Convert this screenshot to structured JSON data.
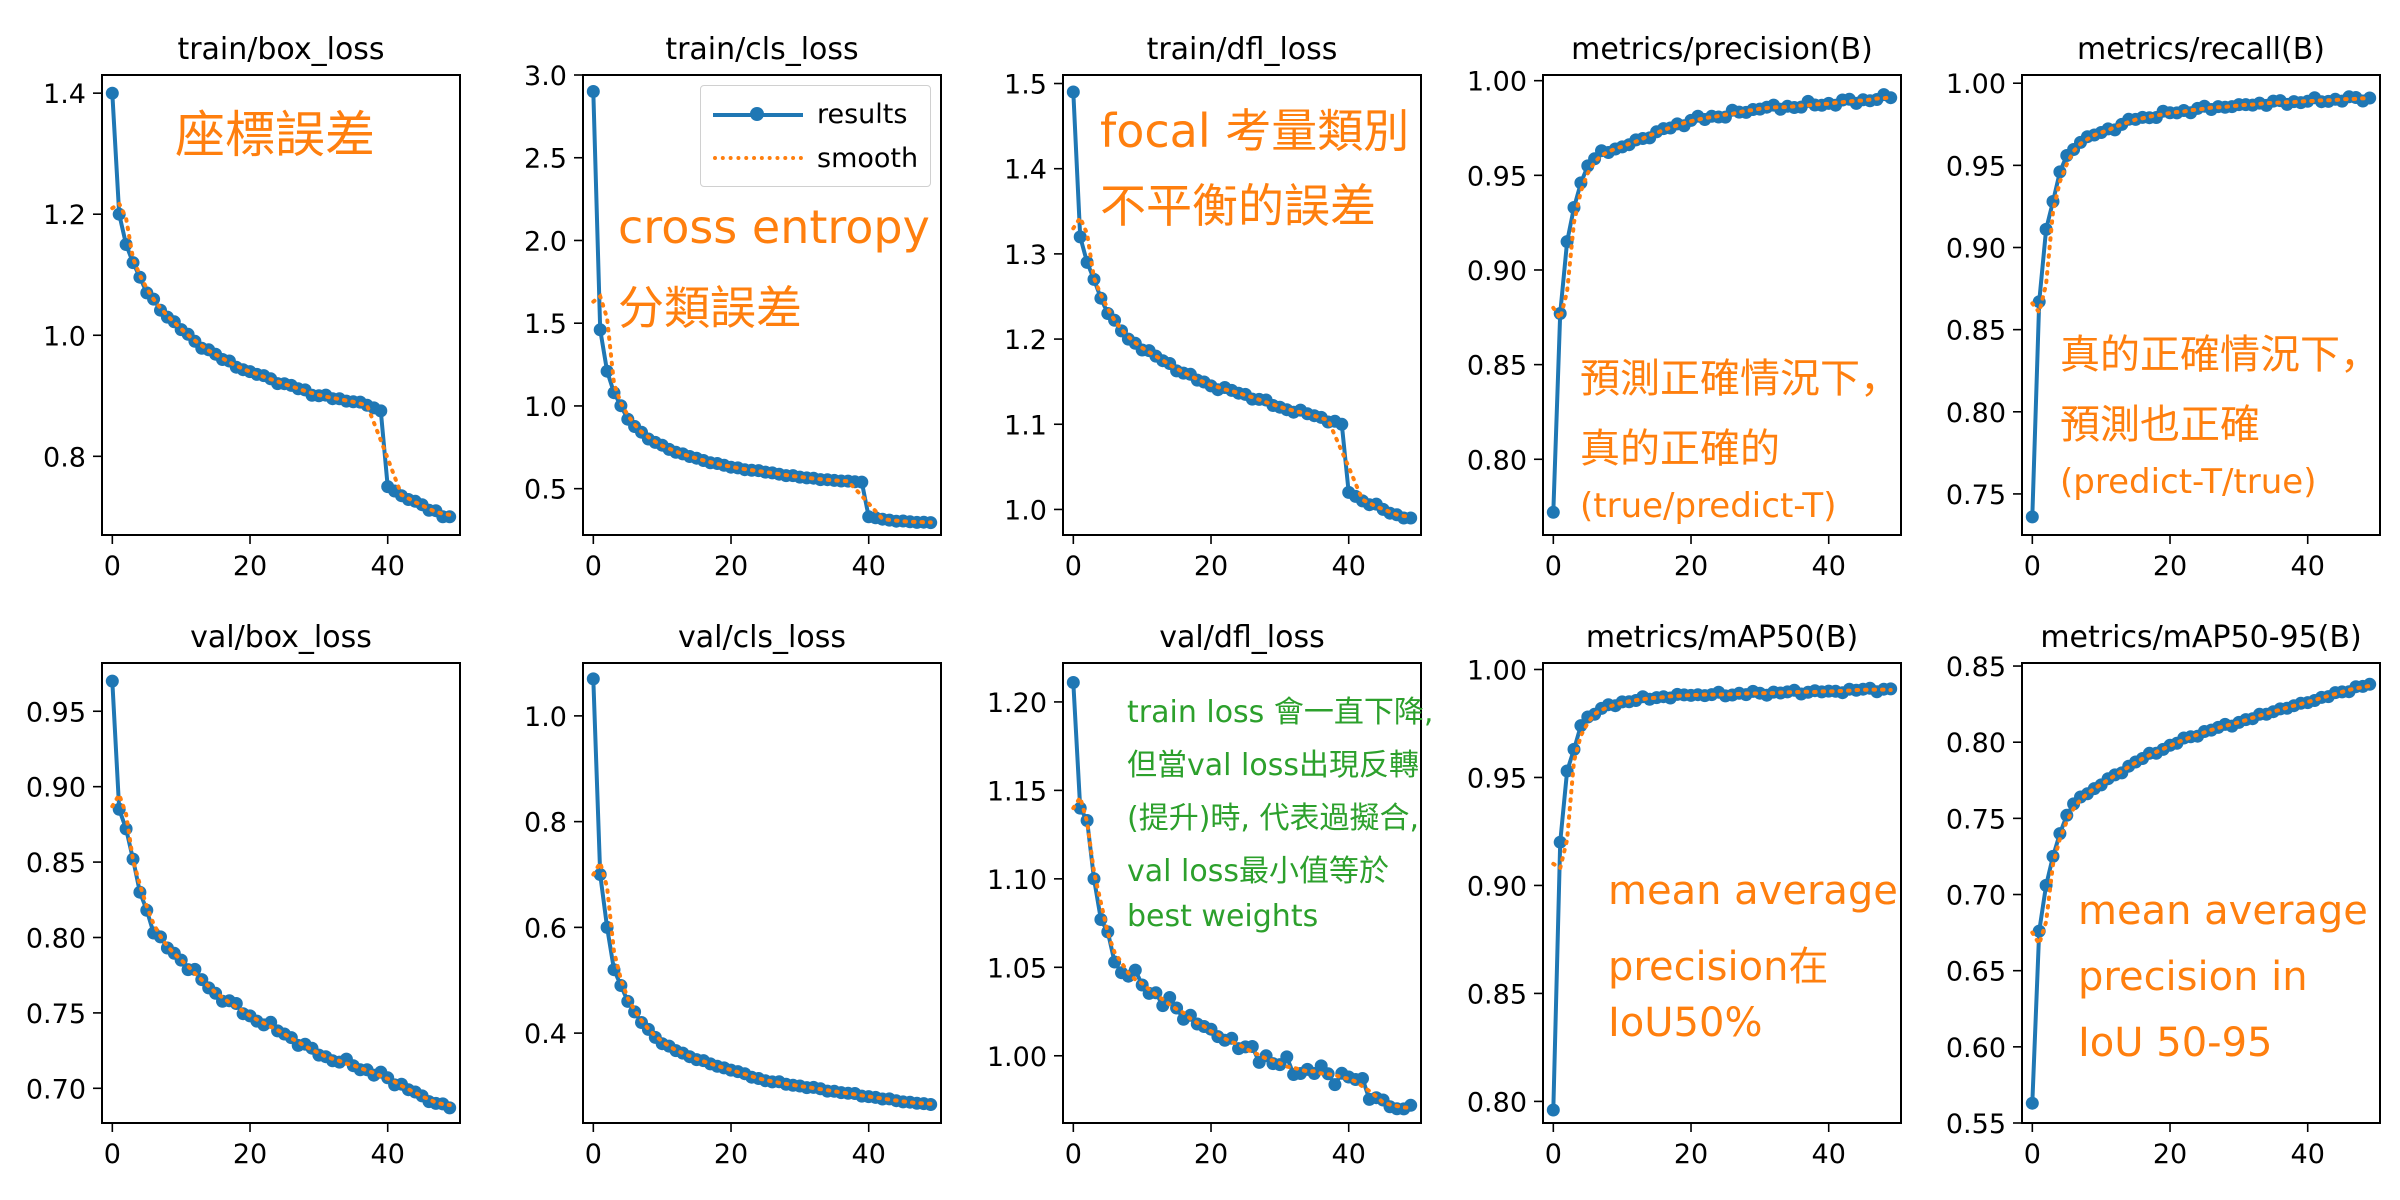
{
  "colors": {
    "results": "#1f77b4",
    "smooth": "#ff7f0e",
    "note_orange": "#ff7f0e",
    "note_green": "#2ca02c"
  },
  "legend": {
    "results_label": "results",
    "smooth_label": "smooth"
  },
  "chart_data": [
    {
      "type": "line",
      "title": "train/box_loss",
      "ylim": [
        0.67,
        1.43
      ],
      "yticks": [
        0.8,
        1.0,
        1.2,
        1.4
      ],
      "ytick_labels": [
        "0.8",
        "1.0",
        "1.2",
        "1.4"
      ],
      "anchors": [
        [
          0,
          1.4
        ],
        [
          1,
          1.2
        ],
        [
          2,
          1.15
        ],
        [
          3,
          1.12
        ],
        [
          5,
          1.07
        ],
        [
          8,
          1.03
        ],
        [
          12,
          0.99
        ],
        [
          16,
          0.96
        ],
        [
          20,
          0.94
        ],
        [
          25,
          0.92
        ],
        [
          30,
          0.9
        ],
        [
          35,
          0.89
        ],
        [
          38,
          0.88
        ],
        [
          39,
          0.875
        ],
        [
          40,
          0.75
        ],
        [
          42,
          0.735
        ],
        [
          45,
          0.72
        ],
        [
          48,
          0.7
        ],
        [
          49,
          0.7
        ]
      ],
      "noise": 0.004,
      "smooth_start": 1.21,
      "notes": [
        {
          "text": "座標誤差",
          "color": "orange",
          "size": 50
        }
      ]
    },
    {
      "type": "line",
      "title": "train/cls_loss",
      "ylim": [
        0.22,
        3.0
      ],
      "yticks": [
        0.5,
        1.0,
        1.5,
        2.0,
        2.5,
        3.0
      ],
      "ytick_labels": [
        "0.5",
        "1.0",
        "1.5",
        "2.0",
        "2.5",
        "3.0"
      ],
      "anchors": [
        [
          0,
          2.9
        ],
        [
          1,
          1.46
        ],
        [
          2,
          1.21
        ],
        [
          3,
          1.08
        ],
        [
          5,
          0.92
        ],
        [
          8,
          0.8
        ],
        [
          12,
          0.72
        ],
        [
          16,
          0.67
        ],
        [
          20,
          0.63
        ],
        [
          25,
          0.6
        ],
        [
          30,
          0.57
        ],
        [
          35,
          0.55
        ],
        [
          39,
          0.54
        ],
        [
          40,
          0.33
        ],
        [
          43,
          0.31
        ],
        [
          46,
          0.3
        ],
        [
          49,
          0.295
        ]
      ],
      "noise": 0.004,
      "smooth_start": 1.63,
      "legend": true,
      "notes": [
        {
          "text": "cross entropy",
          "color": "orange",
          "size": 46
        },
        {
          "text": "分類誤差",
          "color": "orange",
          "size": 46
        }
      ]
    },
    {
      "type": "line",
      "title": "train/dfl_loss",
      "ylim": [
        0.97,
        1.51
      ],
      "yticks": [
        1.0,
        1.1,
        1.2,
        1.3,
        1.4,
        1.5
      ],
      "ytick_labels": [
        "1.0",
        "1.1",
        "1.2",
        "1.3",
        "1.4",
        "1.5"
      ],
      "anchors": [
        [
          0,
          1.49
        ],
        [
          1,
          1.32
        ],
        [
          2,
          1.29
        ],
        [
          3,
          1.27
        ],
        [
          5,
          1.23
        ],
        [
          8,
          1.2
        ],
        [
          12,
          1.18
        ],
        [
          16,
          1.16
        ],
        [
          20,
          1.145
        ],
        [
          25,
          1.135
        ],
        [
          30,
          1.12
        ],
        [
          35,
          1.11
        ],
        [
          39,
          1.1
        ],
        [
          40,
          1.02
        ],
        [
          42,
          1.01
        ],
        [
          45,
          1.0
        ],
        [
          48,
          0.99
        ],
        [
          49,
          0.99
        ]
      ],
      "noise": 0.003,
      "smooth_start": 1.33,
      "notes": [
        {
          "text": "focal 考量類別",
          "color": "orange",
          "size": 46
        },
        {
          "text": "不平衡的誤差",
          "color": "orange",
          "size": 46
        }
      ]
    },
    {
      "type": "line",
      "title": "metrics/precision(B)",
      "ylim": [
        0.76,
        1.003
      ],
      "yticks": [
        0.8,
        0.85,
        0.9,
        0.95,
        1.0
      ],
      "ytick_labels": [
        "0.80",
        "0.85",
        "0.90",
        "0.95",
        "1.00"
      ],
      "anchors": [
        [
          0,
          0.772
        ],
        [
          1,
          0.877
        ],
        [
          2,
          0.915
        ],
        [
          3,
          0.933
        ],
        [
          4,
          0.946
        ],
        [
          5,
          0.955
        ],
        [
          7,
          0.963
        ],
        [
          10,
          0.965
        ],
        [
          15,
          0.973
        ],
        [
          20,
          0.979
        ],
        [
          30,
          0.985
        ],
        [
          40,
          0.988
        ],
        [
          49,
          0.991
        ]
      ],
      "noise": 0.002,
      "smooth_start": 0.88,
      "notes": [
        {
          "text": "預測正確情況下，",
          "color": "orange",
          "size": 40
        },
        {
          "text": "真的正確的",
          "color": "orange",
          "size": 40
        },
        {
          "text": "(true/predict-T)",
          "color": "orange",
          "size": 34
        }
      ]
    },
    {
      "type": "line",
      "title": "metrics/recall(B)",
      "ylim": [
        0.725,
        1.005
      ],
      "yticks": [
        0.75,
        0.8,
        0.85,
        0.9,
        0.95,
        1.0
      ],
      "ytick_labels": [
        "0.75",
        "0.80",
        "0.85",
        "0.90",
        "0.95",
        "1.00"
      ],
      "anchors": [
        [
          0,
          0.736
        ],
        [
          1,
          0.867
        ],
        [
          2,
          0.911
        ],
        [
          3,
          0.928
        ],
        [
          4,
          0.946
        ],
        [
          5,
          0.956
        ],
        [
          7,
          0.964
        ],
        [
          10,
          0.97
        ],
        [
          15,
          0.978
        ],
        [
          20,
          0.982
        ],
        [
          30,
          0.987
        ],
        [
          40,
          0.989
        ],
        [
          49,
          0.991
        ]
      ],
      "noise": 0.002,
      "smooth_start": 0.866,
      "notes": [
        {
          "text": "真的正確情況下，",
          "color": "orange",
          "size": 40
        },
        {
          "text": "預測也正確",
          "color": "orange",
          "size": 40
        },
        {
          "text": "(predict-T/true)",
          "color": "orange",
          "size": 34
        }
      ]
    },
    {
      "type": "line",
      "title": "val/box_loss",
      "ylim": [
        0.677,
        0.982
      ],
      "yticks": [
        0.7,
        0.75,
        0.8,
        0.85,
        0.9,
        0.95
      ],
      "ytick_labels": [
        "0.70",
        "0.75",
        "0.80",
        "0.85",
        "0.90",
        "0.95"
      ],
      "anchors": [
        [
          0,
          0.97
        ],
        [
          1,
          0.885
        ],
        [
          2,
          0.872
        ],
        [
          3,
          0.852
        ],
        [
          4,
          0.83
        ],
        [
          5,
          0.818
        ],
        [
          6,
          0.803
        ],
        [
          8,
          0.793
        ],
        [
          10,
          0.785
        ],
        [
          15,
          0.763
        ],
        [
          20,
          0.748
        ],
        [
          25,
          0.736
        ],
        [
          30,
          0.722
        ],
        [
          35,
          0.715
        ],
        [
          40,
          0.707
        ],
        [
          45,
          0.695
        ],
        [
          49,
          0.687
        ]
      ],
      "noise": 0.003,
      "smooth_start": 0.887,
      "notes": []
    },
    {
      "type": "line",
      "title": "val/cls_loss",
      "ylim": [
        0.23,
        1.1
      ],
      "yticks": [
        0.4,
        0.6,
        0.8,
        1.0
      ],
      "ytick_labels": [
        "0.4",
        "0.6",
        "0.8",
        "1.0"
      ],
      "anchors": [
        [
          0,
          1.07
        ],
        [
          1,
          0.7
        ],
        [
          2,
          0.6
        ],
        [
          3,
          0.52
        ],
        [
          4,
          0.49
        ],
        [
          5,
          0.46
        ],
        [
          7,
          0.42
        ],
        [
          10,
          0.38
        ],
        [
          15,
          0.35
        ],
        [
          20,
          0.33
        ],
        [
          25,
          0.31
        ],
        [
          30,
          0.3
        ],
        [
          35,
          0.29
        ],
        [
          40,
          0.28
        ],
        [
          45,
          0.27
        ],
        [
          49,
          0.265
        ]
      ],
      "noise": 0.002,
      "smooth_start": 0.7,
      "notes": []
    },
    {
      "type": "line",
      "title": "val/dfl_loss",
      "ylim": [
        0.962,
        1.222
      ],
      "yticks": [
        1.0,
        1.05,
        1.1,
        1.15,
        1.2
      ],
      "ytick_labels": [
        "1.00",
        "1.05",
        "1.10",
        "1.15",
        "1.20"
      ],
      "anchors": [
        [
          0,
          1.211
        ],
        [
          1,
          1.14
        ],
        [
          2,
          1.133
        ],
        [
          3,
          1.1
        ],
        [
          4,
          1.077
        ],
        [
          5,
          1.07
        ],
        [
          6,
          1.053
        ],
        [
          8,
          1.045
        ],
        [
          10,
          1.04
        ],
        [
          15,
          1.027
        ],
        [
          20,
          1.015
        ],
        [
          25,
          1.005
        ],
        [
          30,
          0.995
        ],
        [
          35,
          0.99
        ],
        [
          40,
          0.988
        ],
        [
          45,
          0.975
        ],
        [
          47,
          0.97
        ],
        [
          49,
          0.972
        ]
      ],
      "noise": 0.006,
      "smooth_start": 1.14,
      "notes": [
        {
          "text": "train loss 會一直下降,",
          "color": "green",
          "size": 30
        },
        {
          "text": "但當val loss出現反轉",
          "color": "green",
          "size": 30
        },
        {
          "text": "(提升)時, 代表過擬合,",
          "color": "green",
          "size": 30
        },
        {
          "text": "val loss最小值等於",
          "color": "green",
          "size": 30
        },
        {
          "text": "best weights",
          "color": "green",
          "size": 30
        }
      ]
    },
    {
      "type": "line",
      "title": "metrics/mAP50(B)",
      "ylim": [
        0.79,
        1.003
      ],
      "yticks": [
        0.8,
        0.85,
        0.9,
        0.95,
        1.0
      ],
      "ytick_labels": [
        "0.80",
        "0.85",
        "0.90",
        "0.95",
        "1.00"
      ],
      "anchors": [
        [
          0,
          0.796
        ],
        [
          1,
          0.92
        ],
        [
          2,
          0.953
        ],
        [
          3,
          0.963
        ],
        [
          4,
          0.974
        ],
        [
          5,
          0.978
        ],
        [
          7,
          0.982
        ],
        [
          10,
          0.985
        ],
        [
          15,
          0.987
        ],
        [
          20,
          0.988
        ],
        [
          30,
          0.989
        ],
        [
          40,
          0.99
        ],
        [
          49,
          0.991
        ]
      ],
      "noise": 0.0012,
      "smooth_start": 0.91,
      "notes": [
        {
          "text": "mean average",
          "color": "orange",
          "size": 40
        },
        {
          "text": "precision在",
          "color": "orange",
          "size": 40
        },
        {
          "text": "IoU50%",
          "color": "orange",
          "size": 40
        }
      ]
    },
    {
      "type": "line",
      "title": "metrics/mAP50-95(B)",
      "ylim": [
        0.55,
        0.852
      ],
      "yticks": [
        0.55,
        0.6,
        0.65,
        0.7,
        0.75,
        0.8,
        0.85
      ],
      "ytick_labels": [
        "0.55",
        "0.60",
        "0.65",
        "0.70",
        "0.75",
        "0.80",
        "0.85"
      ],
      "anchors": [
        [
          0,
          0.563
        ],
        [
          1,
          0.676
        ],
        [
          2,
          0.706
        ],
        [
          3,
          0.725
        ],
        [
          4,
          0.74
        ],
        [
          5,
          0.752
        ],
        [
          7,
          0.764
        ],
        [
          10,
          0.772
        ],
        [
          15,
          0.787
        ],
        [
          20,
          0.798
        ],
        [
          25,
          0.807
        ],
        [
          30,
          0.813
        ],
        [
          35,
          0.82
        ],
        [
          40,
          0.826
        ],
        [
          45,
          0.833
        ],
        [
          49,
          0.838
        ]
      ],
      "noise": 0.0015,
      "smooth_start": 0.675,
      "notes": [
        {
          "text": "mean average",
          "color": "orange",
          "size": 40
        },
        {
          "text": "precision in",
          "color": "orange",
          "size": 40
        },
        {
          "text": "IoU 50-95",
          "color": "orange",
          "size": 40
        }
      ]
    }
  ],
  "x_axis": {
    "epochs": 50,
    "xlim": [
      -1.5,
      50.5
    ],
    "xticks": [
      0,
      20,
      40
    ],
    "xtick_labels": [
      "0",
      "20",
      "40"
    ]
  }
}
